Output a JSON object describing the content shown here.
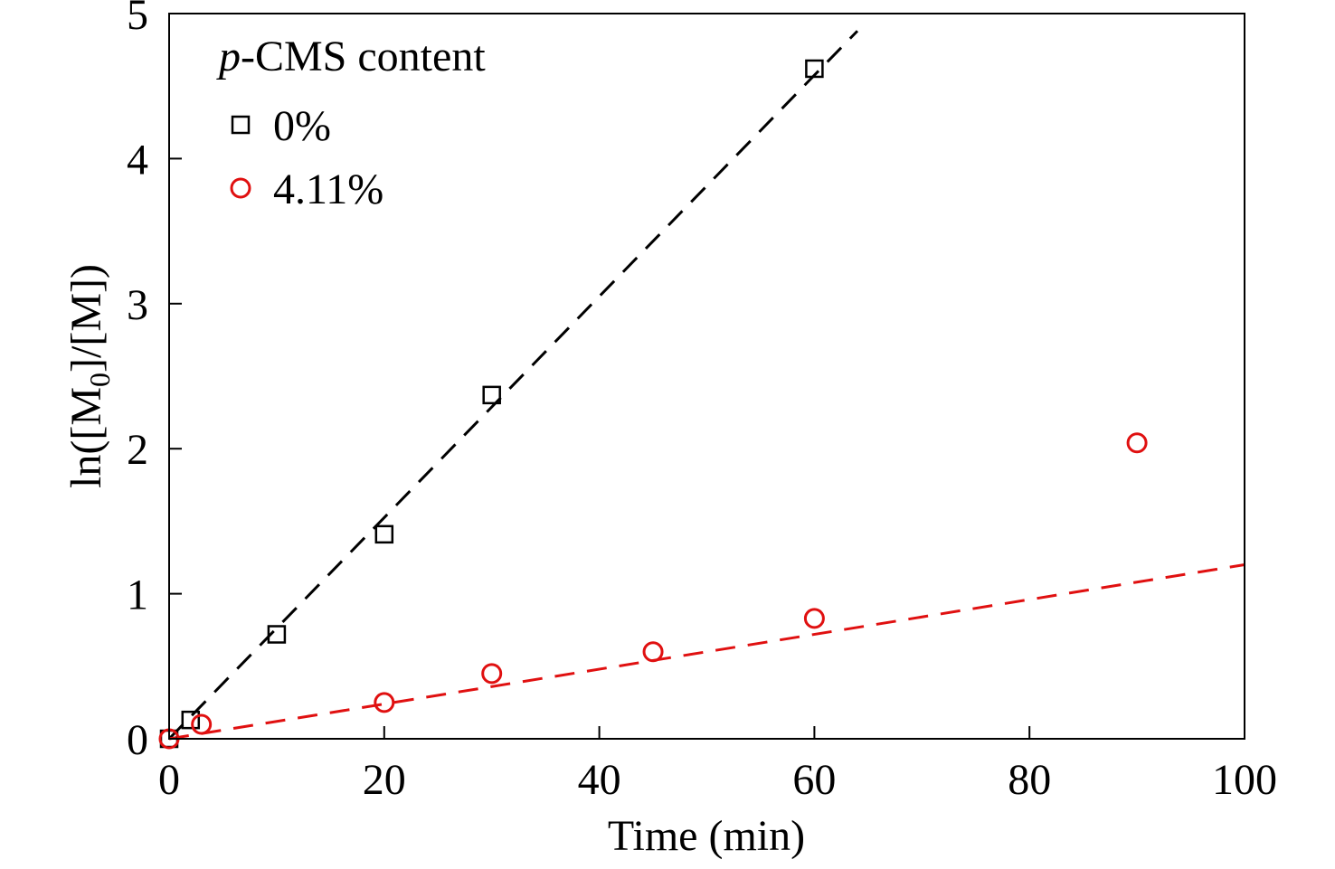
{
  "chart_data": {
    "type": "scatter",
    "xlabel": "Time (min)",
    "ylabel": {
      "prefix": "ln([M",
      "subscript": "0",
      "suffix": "]/[M])"
    },
    "xlim": [
      0,
      100
    ],
    "ylim": [
      0,
      5
    ],
    "xticks": [
      0,
      20,
      40,
      60,
      80,
      100
    ],
    "yticks": [
      0,
      1,
      2,
      3,
      4,
      5
    ],
    "xtick_labels": [
      "0",
      "20",
      "40",
      "60",
      "80",
      "100"
    ],
    "ytick_labels": [
      "0",
      "1",
      "2",
      "3",
      "4",
      "5"
    ],
    "grid": false,
    "legend": {
      "title_italic": "p",
      "title_rest": "-CMS content",
      "placement": "top-left"
    },
    "series": [
      {
        "name": "0%",
        "marker": "square",
        "color": "#000000",
        "x": [
          0,
          2,
          10,
          20,
          30,
          60
        ],
        "y": [
          0.0,
          0.13,
          0.72,
          1.41,
          2.37,
          4.62
        ],
        "fit": {
          "x": [
            0,
            64
          ],
          "y": [
            0,
            4.88
          ],
          "style": "dashed"
        }
      },
      {
        "name": "4.11%",
        "marker": "circle",
        "color": "#e01010",
        "x": [
          0,
          3,
          20,
          30,
          45,
          60,
          90
        ],
        "y": [
          0.0,
          0.1,
          0.25,
          0.45,
          0.6,
          0.83,
          2.04
        ],
        "fit": {
          "x": [
            0,
            100
          ],
          "y": [
            0,
            1.2
          ],
          "style": "dashed"
        }
      }
    ]
  }
}
